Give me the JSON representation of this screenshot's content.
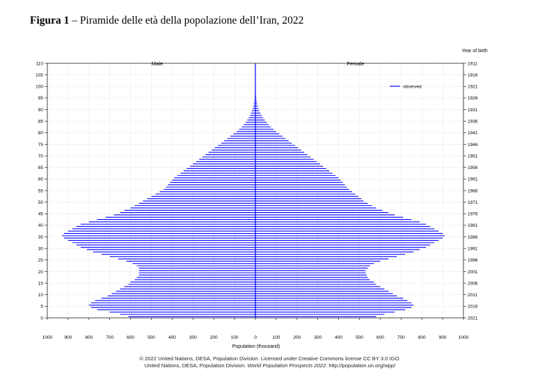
{
  "figure": {
    "number": "Figura 1",
    "separator": "–",
    "caption": "Piramide delle età della popolazione dell’Iran, 2022"
  },
  "chart_data": {
    "type": "bar",
    "orientation": "horizontal",
    "xlabel": "Population (thousand)",
    "ylabel": "",
    "right_axis_label": "Year of birth",
    "left_section_label": "Male",
    "right_section_label": "Female",
    "legend": {
      "label": "observed",
      "position": "top-right",
      "color": "#0000ff"
    },
    "xlim": [
      -1000,
      1000
    ],
    "ylim": [
      0,
      110
    ],
    "x_ticks": [
      1000,
      900,
      800,
      700,
      600,
      500,
      400,
      300,
      200,
      100,
      0,
      100,
      200,
      300,
      400,
      500,
      600,
      700,
      800,
      900,
      1000
    ],
    "age_ticks": [
      0,
      5,
      10,
      15,
      20,
      25,
      30,
      35,
      40,
      45,
      50,
      55,
      60,
      65,
      70,
      75,
      80,
      85,
      90,
      95,
      100,
      105,
      110
    ],
    "birth_year_ticks": [
      2021,
      2016,
      2011,
      2006,
      2001,
      1996,
      1991,
      1986,
      1981,
      1976,
      1971,
      1966,
      1961,
      1956,
      1951,
      1946,
      1941,
      1936,
      1931,
      1926,
      1921,
      1916,
      1911
    ],
    "grid": true,
    "series": [
      {
        "name": "Male",
        "color": "#0000ff",
        "values": [
          610,
          650,
          700,
          760,
          790,
          800,
          790,
          770,
          740,
          710,
          690,
          670,
          650,
          630,
          610,
          600,
          580,
          570,
          560,
          560,
          560,
          560,
          570,
          590,
          620,
          660,
          700,
          740,
          780,
          810,
          840,
          860,
          880,
          900,
          920,
          930,
          920,
          900,
          880,
          860,
          840,
          800,
          760,
          720,
          680,
          650,
          630,
          600,
          580,
          560,
          540,
          520,
          500,
          480,
          460,
          440,
          430,
          420,
          410,
          400,
          390,
          375,
          360,
          345,
          330,
          315,
          300,
          285,
          270,
          255,
          240,
          225,
          210,
          195,
          180,
          165,
          150,
          135,
          120,
          105,
          90,
          78,
          66,
          56,
          47,
          39,
          32,
          26,
          21,
          17,
          13,
          10,
          8,
          6,
          4,
          3,
          2,
          2,
          1,
          1,
          1,
          0,
          0,
          0,
          0,
          0,
          0,
          0,
          0,
          0,
          0
        ]
      },
      {
        "name": "Female",
        "color": "#0000ff",
        "values": [
          580,
          620,
          670,
          720,
          750,
          760,
          750,
          730,
          710,
          680,
          660,
          640,
          620,
          600,
          580,
          570,
          550,
          540,
          535,
          530,
          530,
          540,
          550,
          570,
          600,
          640,
          680,
          720,
          760,
          790,
          820,
          840,
          860,
          880,
          900,
          910,
          900,
          880,
          860,
          840,
          820,
          790,
          750,
          710,
          670,
          640,
          610,
          580,
          560,
          540,
          520,
          510,
          495,
          480,
          465,
          450,
          440,
          430,
          420,
          410,
          400,
          385,
          370,
          355,
          340,
          325,
          310,
          295,
          280,
          265,
          250,
          235,
          220,
          205,
          190,
          175,
          160,
          145,
          130,
          115,
          100,
          87,
          75,
          64,
          54,
          45,
          37,
          30,
          24,
          19,
          15,
          12,
          9,
          7,
          5,
          4,
          3,
          2,
          2,
          1,
          1,
          1,
          0,
          0,
          0,
          0,
          0,
          0,
          0,
          0,
          0
        ]
      }
    ]
  },
  "footer": {
    "line1": "© 2022 United Nations, DESA, Population Division. Licensed under Creative Commons license CC BY 3.0 IGO.",
    "line2_prefix": "United Nations, DESA, Population Division. ",
    "line2_italic": "World Population Prospects 2022",
    "line2_suffix": ". http://population.un.org/wpp/"
  }
}
